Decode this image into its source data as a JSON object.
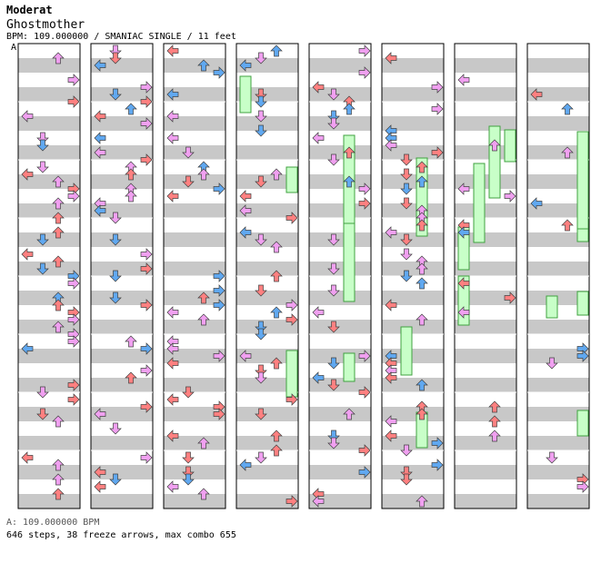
{
  "header": {
    "artist": "Moderat",
    "title": "Ghostmother",
    "info": "BPM: 109.000000 / SMANIAC SINGLE / 11 feet"
  },
  "section_marker": "A",
  "footer": {
    "bpm_line": "A: 109.000000 BPM",
    "stats": "646 steps, 38 freeze arrows, max combo 655"
  },
  "colors": {
    "background": "#ffffff",
    "beat_band": "#c8c8c8",
    "column_border": "#000000",
    "quarter_note": "#ff8080",
    "eighth_note": "#60a8f0",
    "sixteenth_note": "#f0a0f0",
    "freeze_body": "#c8ffc8",
    "freeze_border": "#40a040"
  },
  "notation": {
    "columns": 8,
    "lanes": 4,
    "lane_directions": [
      "left",
      "down",
      "up",
      "right"
    ],
    "note_types": [
      "quarter",
      "eighth",
      "sixteenth",
      "freeze"
    ]
  }
}
